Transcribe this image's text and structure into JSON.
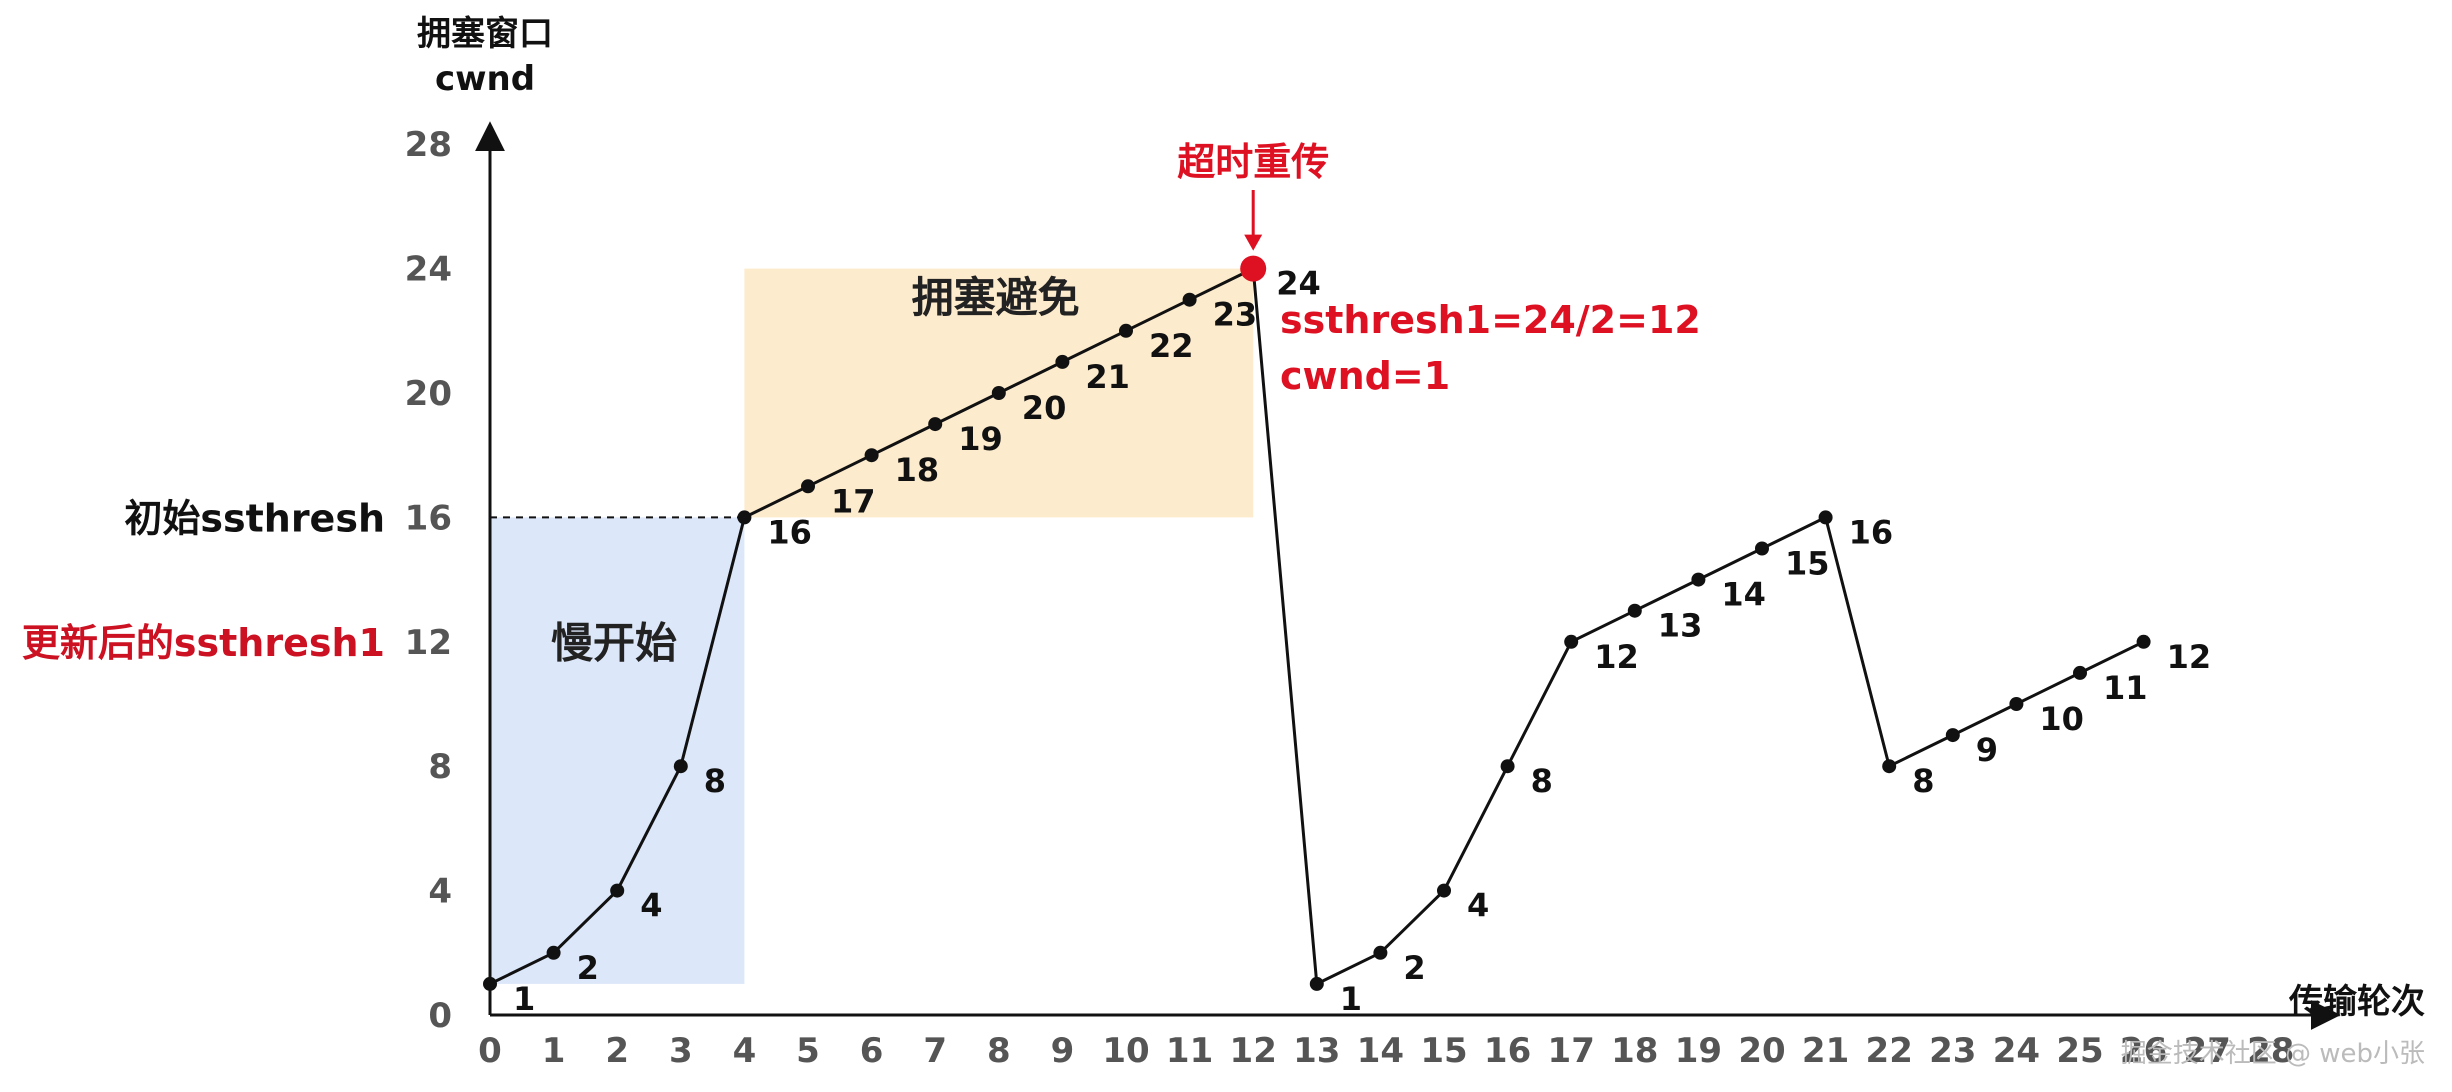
{
  "chart_data": {
    "type": "line",
    "y_axis_title_line1": "拥塞窗口",
    "y_axis_title_line2": "cwnd",
    "x_axis_title": "传输轮次",
    "xlim": [
      0,
      28
    ],
    "ylim": [
      0,
      28
    ],
    "x_ticks": [
      0,
      1,
      2,
      3,
      4,
      5,
      6,
      7,
      8,
      9,
      10,
      11,
      12,
      13,
      14,
      15,
      16,
      17,
      18,
      19,
      20,
      21,
      22,
      23,
      24,
      25,
      26,
      27,
      28
    ],
    "y_ticks": [
      0,
      4,
      8,
      12,
      16,
      20,
      24,
      28
    ],
    "series": [
      {
        "x": [
          0,
          1,
          2,
          3,
          4,
          5,
          6,
          7,
          8,
          9,
          10,
          11,
          12,
          13,
          14,
          15,
          16,
          17,
          18,
          19,
          20,
          21,
          22,
          23,
          24,
          25,
          26
        ],
        "values": [
          1,
          2,
          4,
          8,
          16,
          17,
          18,
          19,
          20,
          21,
          22,
          23,
          24,
          1,
          2,
          4,
          8,
          12,
          13,
          14,
          15,
          16,
          8,
          9,
          10,
          11,
          12
        ]
      }
    ],
    "regions": [
      {
        "label": "慢开始",
        "x": [
          0,
          4
        ],
        "y": [
          1,
          16
        ],
        "color": "#dce7f9"
      },
      {
        "label": "拥塞避免",
        "x": [
          4,
          12
        ],
        "y": [
          16,
          24
        ],
        "color": "#fcebcd"
      }
    ],
    "reference_lines": [
      {
        "label": "初始ssthresh",
        "y": 16,
        "color": "#111111"
      },
      {
        "label": "更新后的ssthresh1",
        "y": 12,
        "color": "#cc1122"
      }
    ],
    "timeout_event": {
      "label": "超时重传",
      "x": 12,
      "y": 24,
      "notes": [
        "ssthresh1=24/2=12",
        "cwnd=1"
      ],
      "color": "#dd1122"
    }
  },
  "watermark": "掘金技术社区 @ web小张"
}
